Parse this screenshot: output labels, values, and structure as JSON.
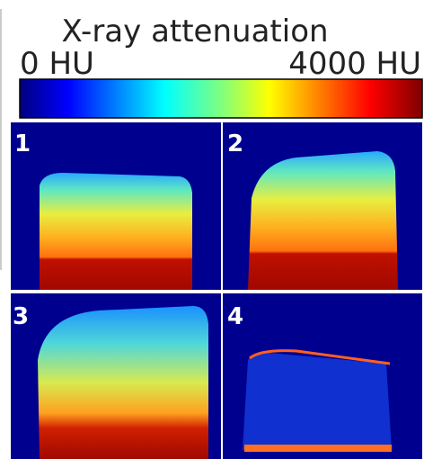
{
  "colorbar": {
    "title": "X-ray attenuation",
    "min_label": "0 HU",
    "max_label": "4000 HU"
  },
  "panels": [
    {
      "label": "1"
    },
    {
      "label": "2"
    },
    {
      "label": "3"
    },
    {
      "label": "4"
    }
  ]
}
